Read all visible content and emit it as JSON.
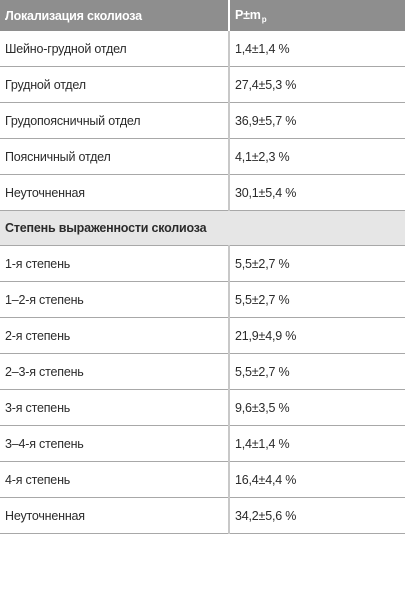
{
  "header": {
    "col1": "Локализация сколиоза",
    "col2_main": "P±m",
    "col2_sub": "p"
  },
  "localization_rows": [
    {
      "label": "Шейно-грудной отдел",
      "value": "1,4±1,4 %"
    },
    {
      "label": "Грудной отдел",
      "value": "27,4±5,3 %"
    },
    {
      "label": "Грудопоясничный отдел",
      "value": "36,9±5,7 %"
    },
    {
      "label": "Поясничный отдел",
      "value": "4,1±2,3 %"
    },
    {
      "label": "Неуточненная",
      "value": "30,1±5,4 %"
    }
  ],
  "section": {
    "title": "Степень выраженности сколиоза"
  },
  "degree_rows": [
    {
      "label": "1-я степень",
      "value": "5,5±2,7 %"
    },
    {
      "label": "1–2-я степень",
      "value": "5,5±2,7 %"
    },
    {
      "label": "2-я степень",
      "value": "21,9±4,9 %"
    },
    {
      "label": "2–3-я степень",
      "value": "5,5±2,7 %"
    },
    {
      "label": "3-я степень",
      "value": "9,6±3,5 %"
    },
    {
      "label": "3–4-я степень",
      "value": "1,4±1,4 %"
    },
    {
      "label": "4-я степень",
      "value": "16,4±4,4 %"
    },
    {
      "label": "Неуточненная",
      "value": "34,2±5,6 %"
    }
  ]
}
